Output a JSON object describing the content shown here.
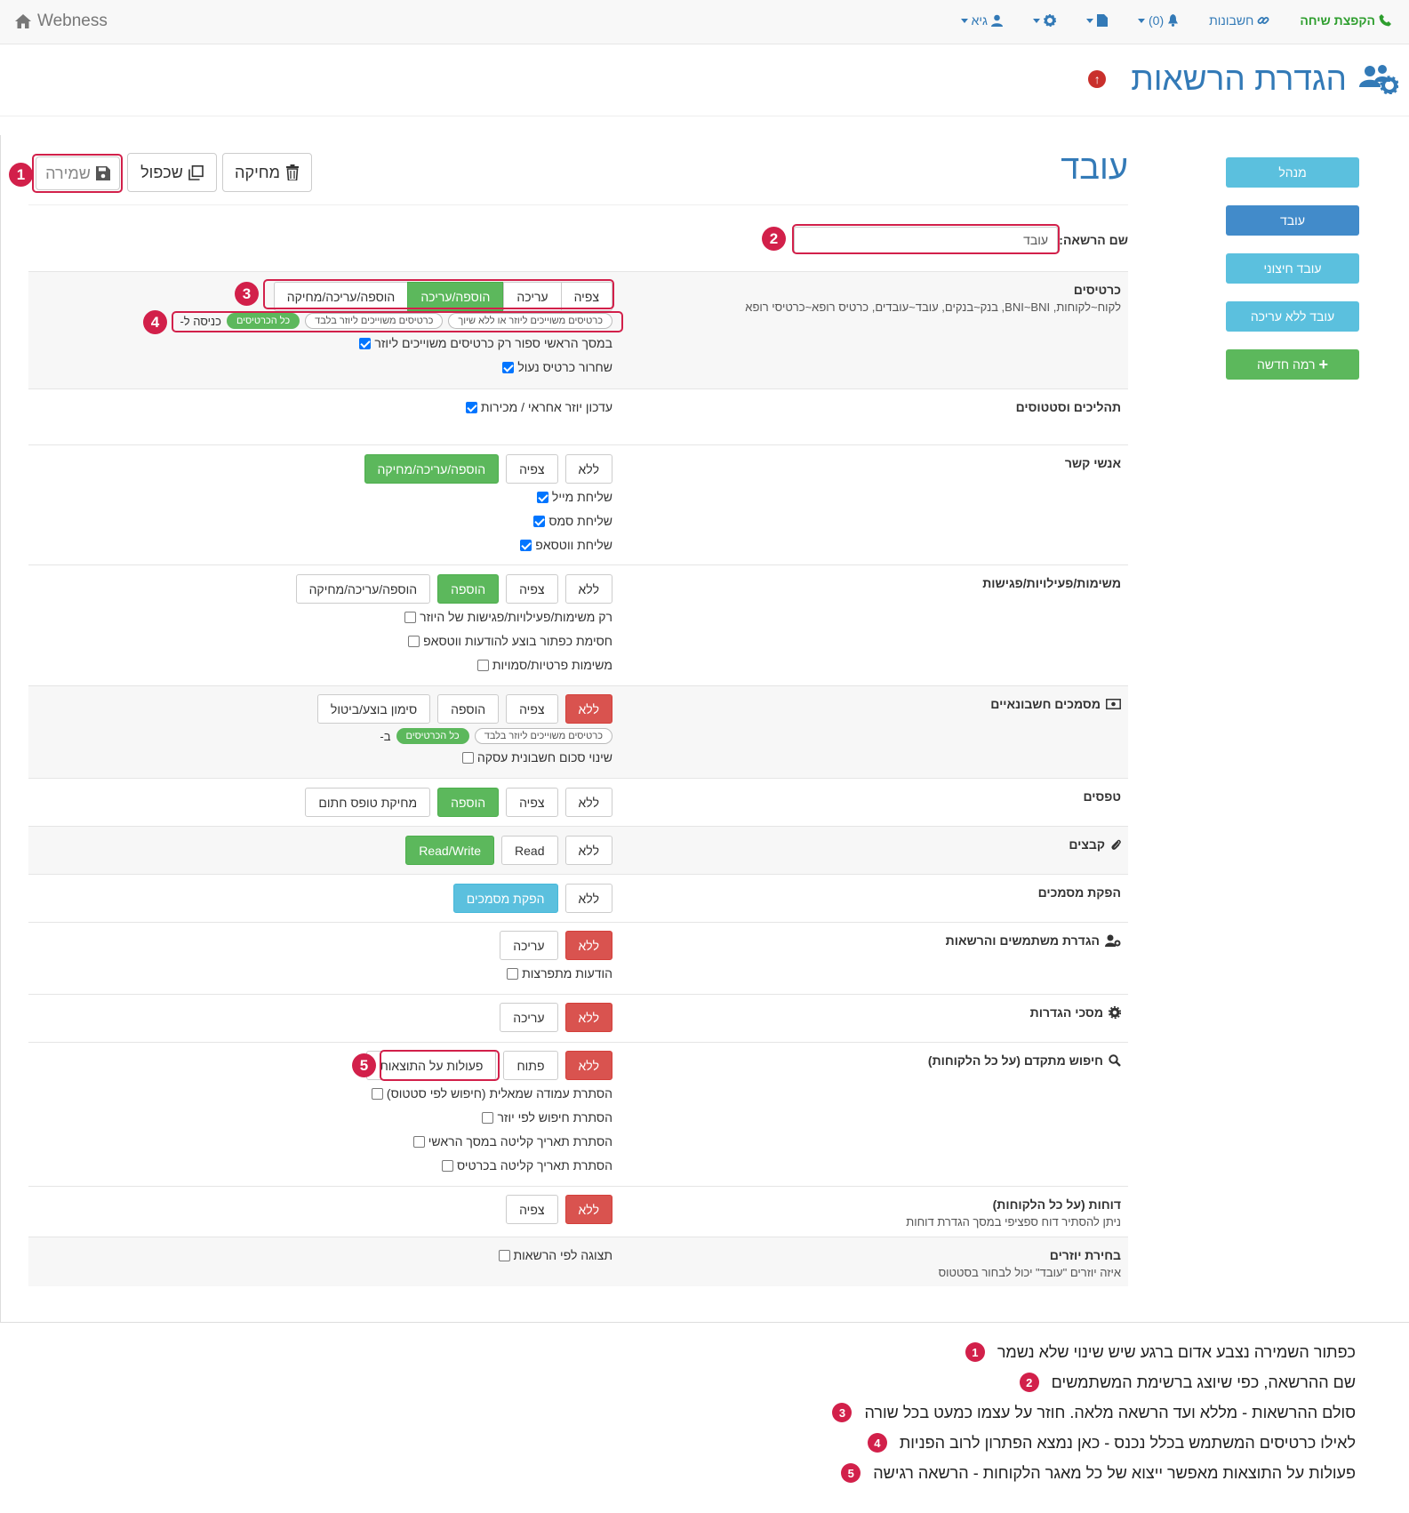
{
  "navbar": {
    "brand": "Webness",
    "call_action": "הקפצת שיחה",
    "accounts": "חשבונות",
    "notifications": "(0)",
    "user": "גיא"
  },
  "page": {
    "title": "הגדרת הרשאות"
  },
  "sidebar": {
    "roles": [
      {
        "label": "מנהל",
        "color": "#5bc0de"
      },
      {
        "label": "עובד",
        "color": "#428bca"
      },
      {
        "label": "עובד חיצוני",
        "color": "#5bc0de"
      },
      {
        "label": "עובד ללא עריכה",
        "color": "#5bc0de"
      }
    ],
    "new_role": "רמה חדשה"
  },
  "toolbar": {
    "save": "שמירה",
    "duplicate": "שכפול",
    "delete": "מחיקה"
  },
  "role": {
    "title": "עובד",
    "name_label": "שם הרשאה:",
    "name_value": "עובד"
  },
  "sections": {
    "cards": {
      "title": "כרטיסים",
      "subtitle": "לקוח~לקוחות, BNI~BNI, בנק~בנקים, עובד~עובדים, כרטיס רופא~כרטיסי רופא",
      "buttons": [
        "צפיה",
        "עריכה",
        "הוספה/עריכה",
        "הוספה/עריכה/מחיקה"
      ],
      "entry_label": "כניסה ל-",
      "pills": [
        "כל הכרטיסים",
        "כרטיסים משוייכים ליוזר בלבד",
        "כרטיסים משוייכים ליוזר או ללא שיוך"
      ],
      "checks": [
        "במסך הראשי ספור רק כרטיסים משוייכים ליוזר",
        "שחרור כרטיס נעול"
      ]
    },
    "processes": {
      "title": "תהליכים וסטטוסים",
      "checks": [
        "עדכון יוזר אחראי / מכירות"
      ]
    },
    "contacts": {
      "title": "אנשי קשר",
      "buttons": [
        "ללא",
        "צפיה",
        "הוספה/עריכה/מחיקה"
      ],
      "checks": [
        "שליחת מייל",
        "שליחת סמס",
        "שליחת ווטסאפ"
      ]
    },
    "tasks": {
      "title": "משימות/פעילויות/פגישות",
      "buttons": [
        "ללא",
        "צפיה",
        "הוספה",
        "הוספה/עריכה/מחיקה"
      ],
      "checks": [
        "רק משימות/פעילויות/פגישות של היוזר",
        "חסימת כפתור בוצע להודעות ווטסאפ",
        "משימות פרטיות/סמויות"
      ]
    },
    "finance": {
      "title": "מסמכים חשבונאיים",
      "buttons": [
        "ללא",
        "צפיה",
        "הוספה",
        "סימון בוצע/ביטול"
      ],
      "prefix": "ב-",
      "pills": [
        "כל הכרטיסים",
        "כרטיסים משוייכים ליוזר בלבד"
      ],
      "checks": [
        "שינוי סכום חשבונית עסקה"
      ]
    },
    "forms": {
      "title": "טפסים",
      "buttons": [
        "ללא",
        "צפיה",
        "הוספה",
        "מחיקת טופס חתום"
      ]
    },
    "files": {
      "title": "קבצים",
      "buttons": [
        "ללא",
        "Read",
        "Read/Write"
      ]
    },
    "docs": {
      "title": "הפקת מסמכים",
      "buttons": [
        "ללא",
        "הפקת מסמכים"
      ]
    },
    "users": {
      "title": "הגדרת משתמשים והרשאות",
      "buttons": [
        "ללא",
        "עריכה"
      ],
      "checks": [
        "הודעות מתפרצות"
      ]
    },
    "settings": {
      "title": "מסכי הגדרות",
      "buttons": [
        "ללא",
        "עריכה"
      ]
    },
    "search": {
      "title": "חיפוש מתקדם (על כל הלקוחות)",
      "buttons": [
        "ללא",
        "פתוח",
        "פעולות על התוצאות"
      ],
      "checks": [
        "הסתרת עמודה שמאלית (חיפוש לפי סטטוס)",
        "הסתרת חיפוש לפי יוזר",
        "הסתרת תאריך קליטה במסך הראשי",
        "הסתרת תאריך קליטה בכרטיס"
      ]
    },
    "reports": {
      "title": "דוחות (על כל הלקוחות)",
      "subtitle": "ניתן להסתיר דוח ספציפי במסך הגדרת דוחות",
      "buttons": [
        "ללא",
        "צפיה"
      ]
    },
    "userselect": {
      "title": "בחירת יוזרים",
      "subtitle": "איזה יוזרים \"עובד\" יכול לבחור בסטטוס",
      "checks": [
        "תצוגה לפי הרשאות"
      ]
    }
  },
  "annotations": [
    {
      "n": "1",
      "text": "כפתור השמירה נצבע אדום ברגע שיש שינוי שלא נשמר"
    },
    {
      "n": "2",
      "text": "שם ההרשאה, כפי שיוצג ברשימת המשתמשים"
    },
    {
      "n": "3",
      "text": "סולם ההרשאות - מללא ועד הרשאה מלאה. חוזר על עצמו כמעט בכל שורה"
    },
    {
      "n": "4",
      "text": "לאילו כרטיסים המשתמש בכלל נכנס - כאן נמצא הפתרון לרוב הפניות"
    },
    {
      "n": "5",
      "text": "פעולות על התוצאות מאפשר ייצוא של כל מאגר הלקוחות - הרשאה רגישה"
    }
  ],
  "colors": {
    "primary": "#337ab7",
    "success": "#5cb85c",
    "danger": "#d9534f",
    "info": "#5bc0de",
    "highlight": "#d2204a"
  }
}
